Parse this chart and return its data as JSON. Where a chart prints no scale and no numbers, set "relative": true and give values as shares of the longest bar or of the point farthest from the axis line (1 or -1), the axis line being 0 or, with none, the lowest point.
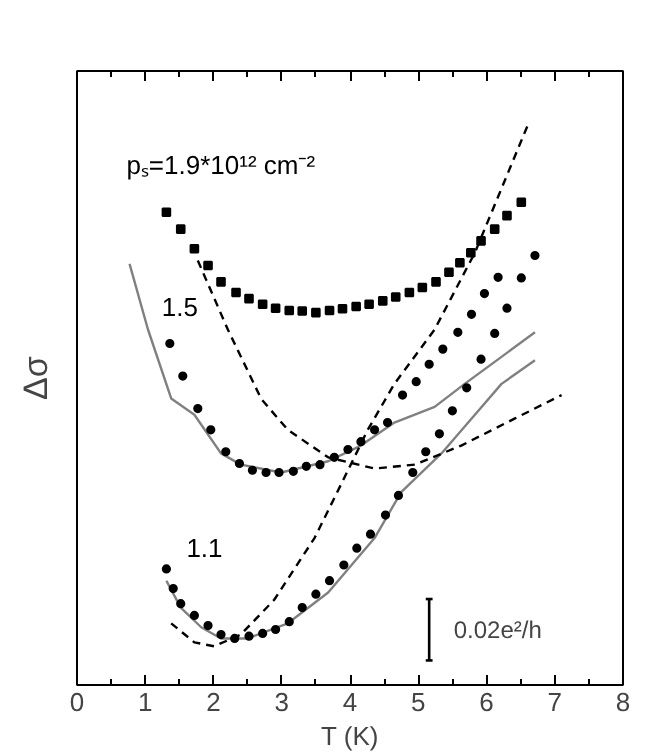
{
  "chart_data": {
    "type": "scatter",
    "relative": true,
    "xlabel": "T (K)",
    "ylabel": "Δσ",
    "xlim": [
      0,
      8
    ],
    "xticks": [
      0,
      1,
      2,
      3,
      4,
      5,
      6,
      7,
      8
    ],
    "grid": false,
    "tick_labels": "x",
    "annotations": [
      "0.02e²/h"
    ],
    "series": [
      {
        "name": "pₛ=1.9*10¹² cm⁻²",
        "marker": "square",
        "color": "#000000",
        "x": [
          1.31,
          1.52,
          1.72,
          1.92,
          2.11,
          2.33,
          2.52,
          2.72,
          2.91,
          3.11,
          3.3,
          3.5,
          3.7,
          3.89,
          4.09,
          4.28,
          4.48,
          4.67,
          4.87,
          5.06,
          5.26,
          5.45,
          5.61,
          5.77,
          5.92,
          6.12,
          6.3,
          6.51
        ],
        "values": [
          0.843,
          0.813,
          0.778,
          0.748,
          0.719,
          0.7,
          0.689,
          0.679,
          0.672,
          0.668,
          0.667,
          0.664,
          0.668,
          0.671,
          0.675,
          0.679,
          0.685,
          0.692,
          0.7,
          0.709,
          0.719,
          0.736,
          0.753,
          0.771,
          0.792,
          0.813,
          0.837,
          0.861
        ]
      },
      {
        "name": "1.5",
        "marker": "circle",
        "color": "#000000",
        "x": [
          1.36,
          1.55,
          1.77,
          1.96,
          2.18,
          2.38,
          2.57,
          2.77,
          2.96,
          3.17,
          3.36,
          3.56,
          3.77,
          3.97,
          4.16,
          4.36,
          4.55,
          4.77,
          4.97,
          5.16,
          5.36,
          5.58,
          5.78,
          5.97,
          6.17
        ],
        "values": [
          0.609,
          0.551,
          0.493,
          0.455,
          0.416,
          0.395,
          0.383,
          0.379,
          0.379,
          0.381,
          0.39,
          0.393,
          0.406,
          0.42,
          0.434,
          0.455,
          0.468,
          0.517,
          0.541,
          0.572,
          0.599,
          0.629,
          0.661,
          0.698,
          0.727
        ]
      },
      {
        "name": "1.1",
        "marker": "circle",
        "color": "#000000",
        "x": [
          1.31,
          1.41,
          1.52,
          1.72,
          1.92,
          2.11,
          2.31,
          2.52,
          2.72,
          2.91,
          3.11,
          3.3,
          3.5,
          3.7,
          3.91,
          4.1,
          4.3,
          4.52,
          4.71,
          4.92,
          5.11,
          5.31,
          5.5,
          5.71,
          5.92,
          6.12,
          6.3,
          6.51,
          6.71
        ],
        "values": [
          0.207,
          0.172,
          0.145,
          0.124,
          0.106,
          0.09,
          0.083,
          0.087,
          0.092,
          0.099,
          0.113,
          0.138,
          0.162,
          0.186,
          0.214,
          0.244,
          0.269,
          0.303,
          0.338,
          0.379,
          0.416,
          0.448,
          0.489,
          0.53,
          0.581,
          0.627,
          0.672,
          0.726,
          0.766
        ]
      },
      {
        "type": "line",
        "line_style": "solid",
        "color": "#808080",
        "x": [
          0.77,
          1.04,
          1.38,
          1.72,
          2.11,
          2.4,
          2.99,
          3.68,
          4.16,
          4.65,
          5.24,
          5.68,
          6.71
        ],
        "values": [
          0.751,
          0.634,
          0.511,
          0.482,
          0.413,
          0.393,
          0.379,
          0.399,
          0.427,
          0.468,
          0.496,
          0.537,
          0.629
        ]
      },
      {
        "type": "line",
        "line_style": "solid",
        "color": "#808080",
        "x": [
          1.31,
          1.52,
          1.82,
          2.11,
          2.5,
          3.09,
          3.68,
          4.36,
          4.75,
          5.34,
          5.83,
          6.22,
          6.71
        ],
        "values": [
          0.186,
          0.138,
          0.103,
          0.083,
          0.083,
          0.11,
          0.165,
          0.262,
          0.344,
          0.413,
          0.482,
          0.537,
          0.579
        ]
      },
      {
        "type": "line",
        "line_style": "dashed",
        "color": "#000000",
        "x": [
          1.38,
          1.72,
          2.01,
          2.4,
          2.89,
          3.48,
          3.87,
          4.26,
          4.65,
          5.24,
          5.83,
          6.61
        ],
        "values": [
          0.11,
          0.076,
          0.069,
          0.09,
          0.152,
          0.262,
          0.358,
          0.455,
          0.537,
          0.634,
          0.771,
          1.0
        ]
      },
      {
        "type": "line",
        "line_style": "dashed",
        "color": "#000000",
        "x": [
          1.77,
          2.21,
          2.7,
          3.09,
          3.68,
          4.36,
          4.95,
          5.63,
          6.41,
          7.1
        ],
        "values": [
          0.757,
          0.634,
          0.51,
          0.455,
          0.406,
          0.386,
          0.393,
          0.427,
          0.475,
          0.517
        ]
      }
    ]
  }
}
